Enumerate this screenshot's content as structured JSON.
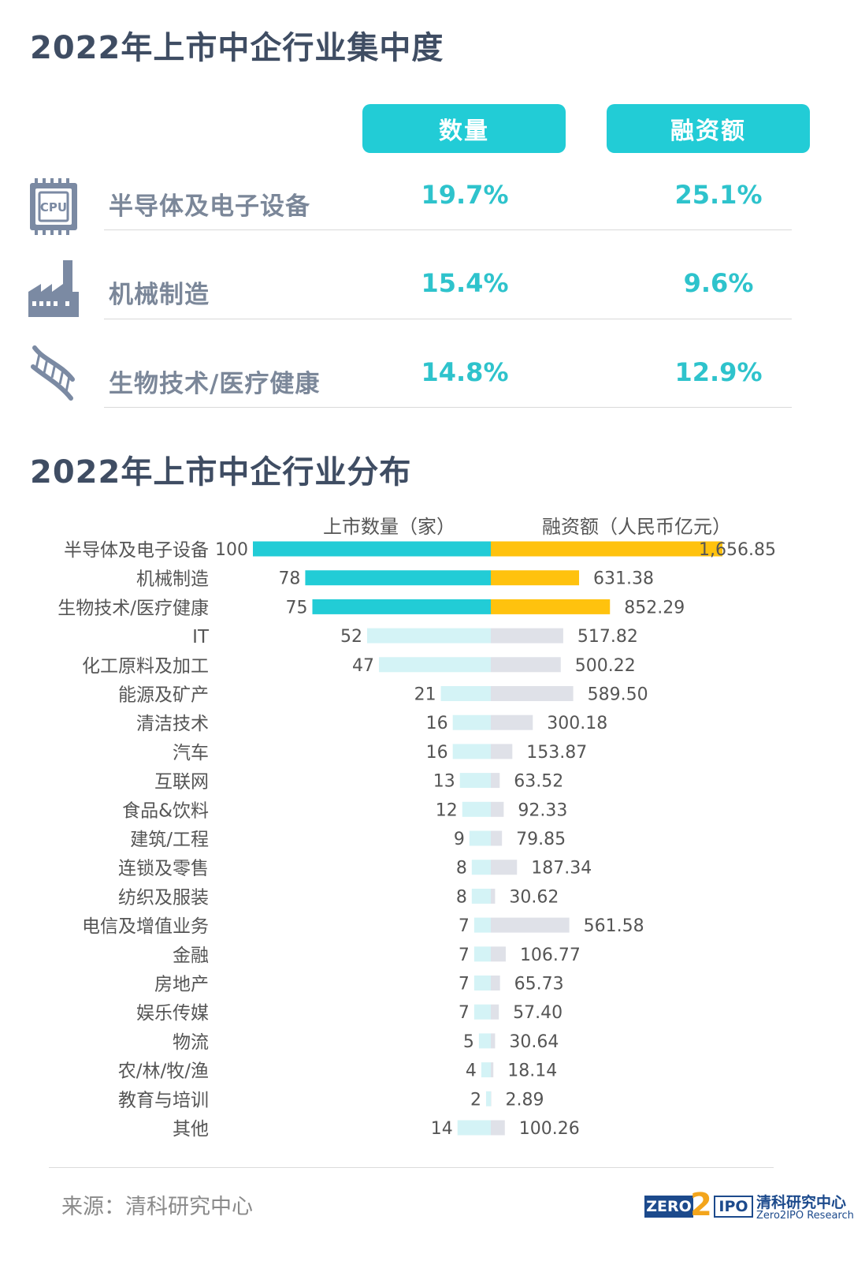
{
  "titles": {
    "concentration": "2022年上市中企行业集中度",
    "distribution": "2022年上市中企行业分布"
  },
  "summary": {
    "headers": {
      "count": "数量",
      "funding": "融资额"
    },
    "rows": [
      {
        "icon": "cpu-icon",
        "label": "半导体及电子设备",
        "count_share": "19.7%",
        "funding_share": "25.1%"
      },
      {
        "icon": "factory-icon",
        "label": "机械制造",
        "count_share": "15.4%",
        "funding_share": "9.6%"
      },
      {
        "icon": "dna-icon",
        "label": "生物技术/医疗健康",
        "count_share": "14.8%",
        "funding_share": "12.9%"
      }
    ]
  },
  "chart_data": {
    "type": "bar",
    "orientation": "horizontal-diverging",
    "title": "2022年上市中企行业分布",
    "categories": [
      "半导体及电子设备",
      "机械制造",
      "生物技术/医疗健康",
      "IT",
      "化工原料及加工",
      "能源及矿产",
      "清洁技术",
      "汽车",
      "互联网",
      "食品&饮料",
      "建筑/工程",
      "连锁及零售",
      "纺织及服装",
      "电信及增值业务",
      "金融",
      "房地产",
      "娱乐传媒",
      "物流",
      "农/林/牧/渔",
      "教育与培训",
      "其他"
    ],
    "series": [
      {
        "name": "上市数量（家）",
        "side": "left",
        "values": [
          100,
          78,
          75,
          52,
          47,
          21,
          16,
          16,
          13,
          12,
          9,
          8,
          8,
          7,
          7,
          7,
          7,
          5,
          4,
          2,
          14
        ],
        "labels": [
          "100",
          "78",
          "75",
          "52",
          "47",
          "21",
          "16",
          "16",
          "13",
          "12",
          "9",
          "8",
          "8",
          "7",
          "7",
          "7",
          "7",
          "5",
          "4",
          "2",
          "14"
        ]
      },
      {
        "name": "融资额（人民币亿元）",
        "side": "right",
        "values": [
          1656.85,
          631.38,
          852.29,
          517.82,
          500.22,
          589.5,
          300.18,
          153.87,
          63.52,
          92.33,
          79.85,
          187.34,
          30.62,
          561.58,
          106.77,
          65.73,
          57.4,
          30.64,
          18.14,
          2.89,
          100.26
        ],
        "labels": [
          "1,656.85",
          "631.38",
          "852.29",
          "517.82",
          "500.22",
          "589.50",
          "300.18",
          "153.87",
          "63.52",
          "92.33",
          "79.85",
          "187.34",
          "30.62",
          "561.58",
          "106.77",
          "65.73",
          "57.40",
          "30.64",
          "18.14",
          "2.89",
          "100.26"
        ]
      }
    ],
    "highlight_count": 3,
    "colors": {
      "count_highlight": "#22ccd6",
      "count_muted": "#d4f3f6",
      "funding_highlight": "#ffc20e",
      "funding_muted": "#dfe1e8"
    }
  },
  "footer": {
    "source": "来源：清科研究中心",
    "logo": {
      "zero": "ZERO",
      "two": "2",
      "ipo": "IPO",
      "cn": "清科研究中心",
      "en": "Zero2IPO Research"
    }
  }
}
